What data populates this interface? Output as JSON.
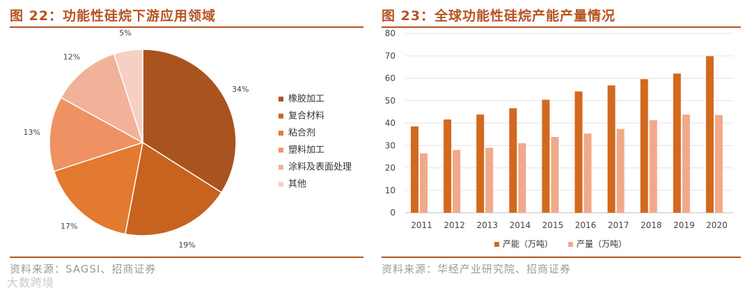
{
  "left": {
    "title": "图 22：功能性硅烷下游应用领域",
    "source": "资料来源：SAGSI、招商证券",
    "chart_data": {
      "type": "pie",
      "title": "",
      "slices": [
        {
          "name": "橡胶加工",
          "value": 34,
          "label": "34%",
          "color": "#a9531f"
        },
        {
          "name": "复合材料",
          "value": 19,
          "label": "19%",
          "color": "#c8621f"
        },
        {
          "name": "粘合剂",
          "value": 17,
          "label": "17%",
          "color": "#e27a2f"
        },
        {
          "name": "塑料加工",
          "value": 13,
          "label": "13%",
          "color": "#ee9264"
        },
        {
          "name": "涂料及表面处理",
          "value": 12,
          "label": "12%",
          "color": "#f2b199"
        },
        {
          "name": "其他",
          "value": 5,
          "label": "5%",
          "color": "#f6d0c2"
        }
      ],
      "legend_position": "right"
    }
  },
  "right": {
    "title": "图 23：全球功能性硅烷产能产量情况",
    "source": "资料来源：华经产业研究院、招商证券",
    "chart_data": {
      "type": "bar",
      "title": "",
      "xlabel": "",
      "ylabel": "",
      "categories": [
        "2011",
        "2012",
        "2013",
        "2014",
        "2015",
        "2016",
        "2017",
        "2018",
        "2019",
        "2020"
      ],
      "series": [
        {
          "name": "产能（万吨）",
          "color": "#d2691e",
          "values": [
            38.5,
            41.6,
            43.8,
            46.6,
            50.4,
            54.1,
            56.8,
            59.6,
            62.1,
            69.8
          ]
        },
        {
          "name": "产量（万吨）",
          "color": "#f1a98a",
          "values": [
            26.5,
            28.0,
            29.0,
            31.0,
            33.8,
            35.3,
            37.4,
            41.3,
            43.8,
            43.6
          ]
        }
      ],
      "ylim": [
        0,
        80
      ],
      "yticks": [
        0,
        10,
        20,
        30,
        40,
        50,
        60,
        70,
        80
      ],
      "grid": true,
      "legend_position": "bottom"
    }
  },
  "watermark": "大数跨境"
}
